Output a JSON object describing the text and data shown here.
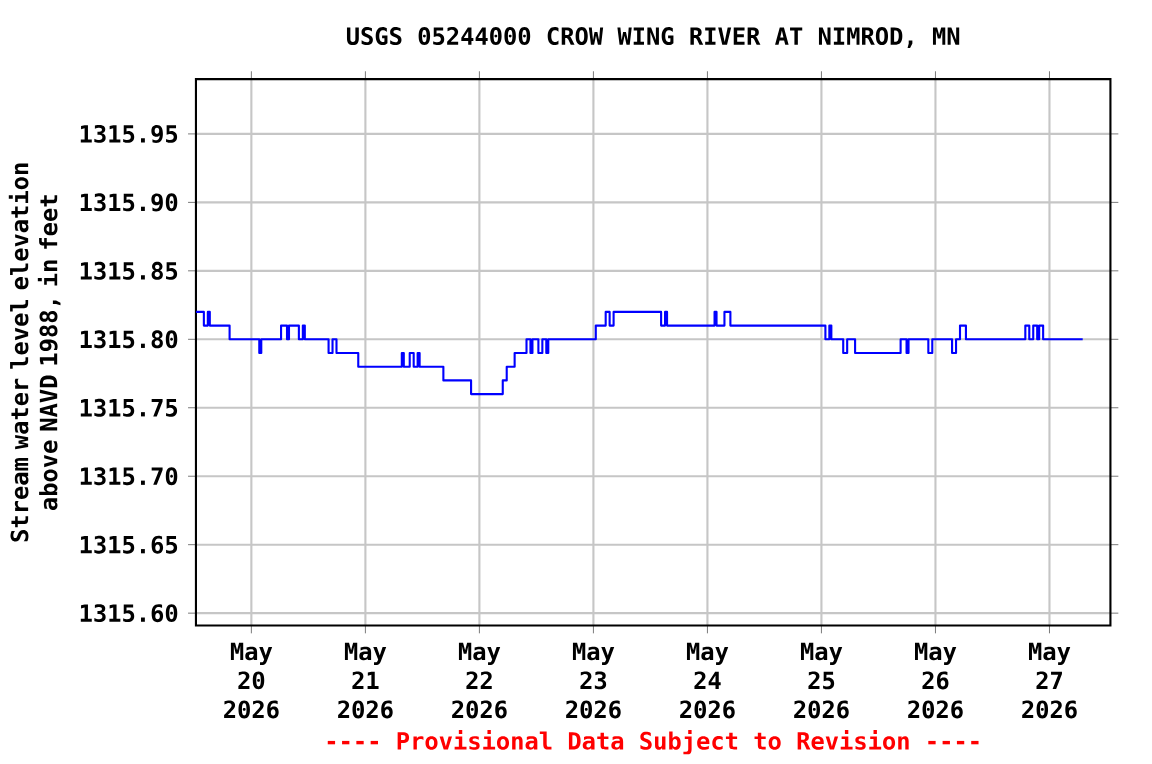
{
  "chart_data": {
    "type": "step",
    "title": "USGS 05244000 CROW WING RIVER AT NIMROD, MN",
    "ylabel": "Stream water level elevation above NAVD 1988, in feet",
    "annotations": [
      "---- Provisional Data Subject to Revision ----"
    ],
    "grid": true,
    "xlim": [
      "2026-05-19T12:20",
      "2026-05-27T12:50"
    ],
    "ylim": [
      1315.591,
      1315.99
    ],
    "xticks": [
      {
        "value": "2026-05-20",
        "label": "May 20 2026"
      },
      {
        "value": "2026-05-21",
        "label": "May 21 2026"
      },
      {
        "value": "2026-05-22",
        "label": "May 22 2026"
      },
      {
        "value": "2026-05-23",
        "label": "May 23 2026"
      },
      {
        "value": "2026-05-24",
        "label": "May 24 2026"
      },
      {
        "value": "2026-05-25",
        "label": "May 25 2026"
      },
      {
        "value": "2026-05-26",
        "label": "May 26 2026"
      },
      {
        "value": "2026-05-27",
        "label": "May 27 2026"
      }
    ],
    "yticks": [
      {
        "value": 1315.6,
        "label": "1315.60"
      },
      {
        "value": 1315.65,
        "label": "1315.65"
      },
      {
        "value": 1315.7,
        "label": "1315.70"
      },
      {
        "value": 1315.75,
        "label": "1315.75"
      },
      {
        "value": 1315.8,
        "label": "1315.80"
      },
      {
        "value": 1315.85,
        "label": "1315.85"
      },
      {
        "value": 1315.9,
        "label": "1315.90"
      },
      {
        "value": 1315.95,
        "label": "1315.95"
      }
    ],
    "series": [
      {
        "color": "#0000ff",
        "x": [
          "2026-05-19T12:20",
          "2026-05-19T14:00",
          "2026-05-19T14:50",
          "2026-05-19T15:15",
          "2026-05-19T19:25",
          "2026-05-20T01:40",
          "2026-05-20T02:05",
          "2026-05-20T06:15",
          "2026-05-20T07:30",
          "2026-05-20T07:55",
          "2026-05-20T10:00",
          "2026-05-20T10:50",
          "2026-05-20T11:15",
          "2026-05-20T16:15",
          "2026-05-20T17:05",
          "2026-05-20T17:55",
          "2026-05-20T22:30",
          "2026-05-21T07:40",
          "2026-05-21T08:05",
          "2026-05-21T09:20",
          "2026-05-21T10:10",
          "2026-05-21T11:00",
          "2026-05-21T11:25",
          "2026-05-21T16:25",
          "2026-05-21T22:15",
          "2026-05-22T04:55",
          "2026-05-22T05:45",
          "2026-05-22T07:25",
          "2026-05-22T09:55",
          "2026-05-22T10:45",
          "2026-05-22T11:10",
          "2026-05-22T12:25",
          "2026-05-22T13:15",
          "2026-05-22T14:05",
          "2026-05-22T14:30",
          "2026-05-23T00:30",
          "2026-05-23T02:35",
          "2026-05-23T03:25",
          "2026-05-23T04:15",
          "2026-05-23T14:15",
          "2026-05-23T15:05",
          "2026-05-23T15:30",
          "2026-05-24T01:30",
          "2026-05-24T01:55",
          "2026-05-24T03:35",
          "2026-05-24T04:50",
          "2026-05-25T00:50",
          "2026-05-25T01:40",
          "2026-05-25T02:05",
          "2026-05-25T04:35",
          "2026-05-25T05:25",
          "2026-05-25T07:05",
          "2026-05-25T16:40",
          "2026-05-25T17:55",
          "2026-05-25T18:20",
          "2026-05-25T22:30",
          "2026-05-25T23:20",
          "2026-05-26T03:30",
          "2026-05-26T04:20",
          "2026-05-26T05:10",
          "2026-05-26T06:25",
          "2026-05-26T18:55",
          "2026-05-26T19:45",
          "2026-05-26T20:35",
          "2026-05-26T21:25",
          "2026-05-26T21:50",
          "2026-05-26T22:40",
          "2026-05-27T07:00"
        ],
        "values": [
          1315.82,
          1315.81,
          1315.82,
          1315.81,
          1315.8,
          1315.79,
          1315.8,
          1315.81,
          1315.8,
          1315.81,
          1315.8,
          1315.81,
          1315.8,
          1315.79,
          1315.8,
          1315.79,
          1315.78,
          1315.79,
          1315.78,
          1315.79,
          1315.78,
          1315.79,
          1315.78,
          1315.77,
          1315.76,
          1315.77,
          1315.78,
          1315.79,
          1315.8,
          1315.79,
          1315.8,
          1315.79,
          1315.8,
          1315.79,
          1315.8,
          1315.81,
          1315.82,
          1315.81,
          1315.82,
          1315.81,
          1315.82,
          1315.81,
          1315.82,
          1315.81,
          1315.82,
          1315.81,
          1315.8,
          1315.81,
          1315.8,
          1315.79,
          1315.8,
          1315.79,
          1315.8,
          1315.79,
          1315.8,
          1315.79,
          1315.8,
          1315.79,
          1315.8,
          1315.81,
          1315.8,
          1315.81,
          1315.8,
          1315.81,
          1315.8,
          1315.81,
          1315.8,
          1315.8
        ]
      }
    ]
  }
}
